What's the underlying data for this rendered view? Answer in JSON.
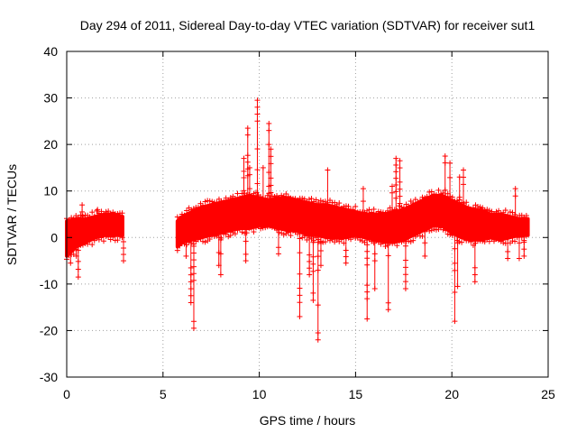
{
  "chart_data": {
    "type": "scatter",
    "title": "Day 294 of 2011, Sidereal Day-to-day VTEC variation (SDTVAR) for receiver sut1",
    "xlabel": "GPS time / hours",
    "ylabel": "SDTVAR / TECUs",
    "xlim": [
      0,
      25
    ],
    "ylim": [
      -30,
      40
    ],
    "xticks": [
      0,
      5,
      10,
      15,
      20,
      25
    ],
    "yticks": [
      -30,
      -20,
      -10,
      0,
      10,
      20,
      30,
      40
    ],
    "xtick_labels": [
      "0",
      "5",
      "10",
      "15",
      "20",
      "25"
    ],
    "ytick_labels": [
      "-30",
      "-20",
      "-10",
      "0",
      "10",
      "20",
      "30",
      "40"
    ],
    "grid": true,
    "marker": "+",
    "series_color": "#ff0000",
    "segments": [
      {
        "start": 0.0,
        "end": 2.9
      },
      {
        "start": 5.75,
        "end": 23.95
      }
    ],
    "band": {
      "x": [
        0.0,
        0.5,
        1.0,
        1.5,
        2.0,
        2.5,
        2.9,
        5.75,
        6.0,
        6.5,
        7.0,
        7.5,
        8.0,
        8.5,
        9.0,
        9.5,
        10.0,
        10.5,
        11.0,
        11.5,
        12.0,
        12.5,
        13.0,
        13.5,
        14.0,
        14.5,
        15.0,
        15.5,
        16.0,
        16.5,
        17.0,
        17.5,
        18.0,
        18.5,
        19.0,
        19.5,
        20.0,
        20.5,
        21.0,
        21.5,
        22.0,
        22.5,
        23.0,
        23.5,
        23.95
      ],
      "upper": [
        3.5,
        4.0,
        4.0,
        4.5,
        5.0,
        5.0,
        4.5,
        3.5,
        4.5,
        5.5,
        6.5,
        7.0,
        7.5,
        8.0,
        8.5,
        9.0,
        8.5,
        8.0,
        8.5,
        8.5,
        8.0,
        7.5,
        7.0,
        7.0,
        6.5,
        6.0,
        5.5,
        5.0,
        5.0,
        5.0,
        5.5,
        6.0,
        7.0,
        8.0,
        9.0,
        9.0,
        8.0,
        7.0,
        6.0,
        6.0,
        5.0,
        5.0,
        4.5,
        4.0,
        4.0
      ],
      "lower": [
        -4.0,
        -2.0,
        -1.0,
        0.0,
        0.5,
        0.5,
        0.5,
        -2.0,
        -1.0,
        -0.5,
        0.0,
        0.5,
        1.0,
        1.5,
        2.0,
        2.0,
        2.5,
        2.5,
        2.0,
        1.5,
        1.5,
        0.5,
        0.5,
        0.0,
        0.0,
        0.0,
        0.5,
        0.0,
        -0.5,
        -1.0,
        -1.0,
        -0.5,
        0.5,
        1.5,
        2.5,
        2.5,
        1.0,
        0.0,
        -0.5,
        -0.5,
        0.0,
        -0.5,
        0.0,
        0.5,
        0.5
      ]
    },
    "spikes": [
      {
        "x": 0.2,
        "y": -5.5
      },
      {
        "x": 0.5,
        "y": -4.0
      },
      {
        "x": 0.6,
        "y": -8.5
      },
      {
        "x": 0.8,
        "y": 7.0
      },
      {
        "x": 1.6,
        "y": 6.0
      },
      {
        "x": 2.95,
        "y": -5.0
      },
      {
        "x": 6.2,
        "y": -4.0
      },
      {
        "x": 6.45,
        "y": -14.0
      },
      {
        "x": 6.6,
        "y": -19.5
      },
      {
        "x": 7.9,
        "y": -6.0
      },
      {
        "x": 8.0,
        "y": -8.0
      },
      {
        "x": 9.2,
        "y": 17.0
      },
      {
        "x": 9.3,
        "y": -5.0
      },
      {
        "x": 9.4,
        "y": 23.5
      },
      {
        "x": 9.5,
        "y": 15.0
      },
      {
        "x": 9.9,
        "y": 29.5
      },
      {
        "x": 10.2,
        "y": 15.0
      },
      {
        "x": 10.5,
        "y": 24.5
      },
      {
        "x": 10.6,
        "y": 19.0
      },
      {
        "x": 11.0,
        "y": -3.5
      },
      {
        "x": 12.1,
        "y": -17.0
      },
      {
        "x": 12.6,
        "y": -8.0
      },
      {
        "x": 12.8,
        "y": -13.5
      },
      {
        "x": 13.05,
        "y": -22.0
      },
      {
        "x": 13.2,
        "y": -6.0
      },
      {
        "x": 13.55,
        "y": 14.5
      },
      {
        "x": 14.5,
        "y": -5.5
      },
      {
        "x": 15.4,
        "y": 10.5
      },
      {
        "x": 15.6,
        "y": -17.5
      },
      {
        "x": 16.0,
        "y": -11.0
      },
      {
        "x": 16.7,
        "y": -15.5
      },
      {
        "x": 16.9,
        "y": 11.0
      },
      {
        "x": 17.1,
        "y": 17.0
      },
      {
        "x": 17.3,
        "y": 16.5
      },
      {
        "x": 17.6,
        "y": -11.0
      },
      {
        "x": 18.6,
        "y": -4.0
      },
      {
        "x": 19.65,
        "y": 17.5
      },
      {
        "x": 19.9,
        "y": 16.0
      },
      {
        "x": 20.15,
        "y": -18.0
      },
      {
        "x": 20.3,
        "y": -10.5
      },
      {
        "x": 20.4,
        "y": 13.0
      },
      {
        "x": 20.6,
        "y": 14.5
      },
      {
        "x": 21.2,
        "y": -9.5
      },
      {
        "x": 22.9,
        "y": -4.5
      },
      {
        "x": 23.3,
        "y": 10.5
      },
      {
        "x": 23.5,
        "y": -4.5
      },
      {
        "x": 23.75,
        "y": -4.0
      }
    ]
  }
}
